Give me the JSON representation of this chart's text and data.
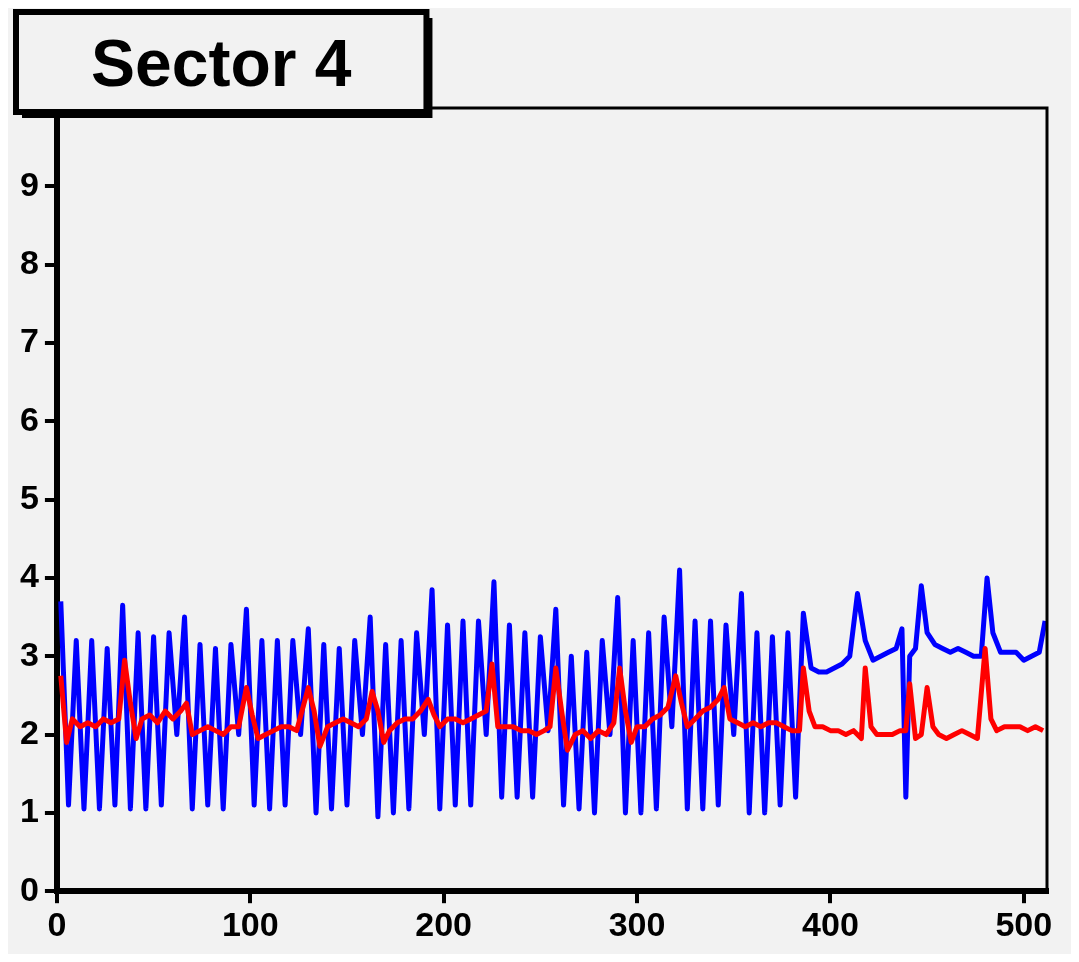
{
  "chart_data": {
    "type": "line",
    "title": "Sector 4",
    "xlim": [
      0,
      512
    ],
    "xticks": [
      0,
      100,
      200,
      300,
      400,
      500
    ],
    "ylim": [
      0,
      10
    ],
    "yticks": [
      0,
      1,
      2,
      3,
      4,
      5,
      6,
      7,
      8,
      9
    ],
    "grid": false,
    "legend": false,
    "series": [
      {
        "color": "#0000ff",
        "x": [
          2,
          6,
          10,
          14,
          18,
          22,
          26,
          30,
          34,
          38,
          42,
          46,
          50,
          54,
          58,
          62,
          66,
          70,
          74,
          78,
          82,
          86,
          90,
          94,
          98,
          102,
          106,
          110,
          114,
          118,
          122,
          126,
          130,
          134,
          138,
          142,
          146,
          150,
          154,
          158,
          162,
          166,
          170,
          174,
          178,
          182,
          186,
          190,
          194,
          198,
          202,
          206,
          210,
          214,
          218,
          222,
          226,
          230,
          234,
          238,
          242,
          246,
          250,
          254,
          258,
          262,
          266,
          270,
          274,
          278,
          282,
          286,
          290,
          294,
          298,
          302,
          306,
          310,
          314,
          318,
          322,
          326,
          330,
          334,
          338,
          342,
          346,
          350,
          354,
          358,
          362,
          366,
          370,
          374,
          378,
          382,
          386,
          390,
          394,
          398,
          402,
          406,
          410,
          414,
          418,
          422,
          426,
          430,
          434,
          437,
          439,
          441,
          444,
          447,
          450,
          454,
          458,
          462,
          466,
          470,
          474,
          478,
          481,
          484,
          488,
          492,
          496,
          500,
          504,
          508,
          511
        ],
        "values": [
          3.7,
          1.1,
          3.2,
          1.05,
          3.2,
          1.05,
          3.1,
          1.1,
          3.65,
          1.05,
          3.3,
          1.05,
          3.25,
          1.1,
          3.3,
          2.0,
          3.5,
          1.05,
          3.15,
          1.1,
          3.1,
          1.05,
          3.15,
          2.0,
          3.6,
          1.1,
          3.2,
          1.05,
          3.2,
          1.1,
          3.2,
          2.0,
          3.35,
          1.0,
          3.15,
          1.05,
          3.1,
          1.1,
          3.2,
          2.0,
          3.5,
          0.95,
          3.15,
          1.0,
          3.2,
          1.05,
          3.3,
          2.0,
          3.85,
          1.05,
          3.4,
          1.1,
          3.45,
          1.1,
          3.45,
          2.0,
          3.95,
          1.2,
          3.4,
          1.2,
          3.3,
          1.2,
          3.25,
          2.05,
          3.6,
          1.1,
          3.0,
          1.05,
          3.05,
          1.0,
          3.2,
          2.0,
          3.75,
          1.0,
          3.2,
          1.0,
          3.3,
          1.05,
          3.5,
          2.1,
          4.1,
          1.05,
          3.45,
          1.05,
          3.45,
          1.1,
          3.4,
          2.0,
          3.8,
          1.0,
          3.3,
          1.0,
          3.25,
          1.1,
          3.3,
          1.2,
          3.55,
          2.85,
          2.8,
          2.8,
          2.85,
          2.9,
          3.0,
          3.8,
          3.2,
          2.95,
          3.0,
          3.05,
          3.1,
          3.35,
          1.2,
          3.0,
          3.1,
          3.9,
          3.3,
          3.15,
          3.1,
          3.05,
          3.1,
          3.05,
          3.0,
          3.0,
          4.0,
          3.3,
          3.05,
          3.05,
          3.05,
          2.95,
          3.0,
          3.05,
          3.45
        ]
      },
      {
        "color": "#ff0000",
        "x": [
          2,
          5,
          8,
          12,
          16,
          20,
          24,
          28,
          32,
          35,
          38,
          41,
          44,
          48,
          52,
          56,
          60,
          64,
          67,
          70,
          74,
          78,
          82,
          86,
          90,
          94,
          98,
          101,
          104,
          108,
          112,
          116,
          120,
          124,
          130,
          133,
          136,
          140,
          144,
          148,
          152,
          156,
          160,
          163,
          166,
          169,
          172,
          176,
          180,
          184,
          188,
          192,
          195,
          198,
          202,
          206,
          210,
          214,
          218,
          222,
          225,
          228,
          232,
          236,
          240,
          244,
          248,
          252,
          255,
          258,
          261,
          264,
          268,
          272,
          276,
          280,
          284,
          288,
          291,
          294,
          297,
          300,
          304,
          308,
          312,
          316,
          320,
          323,
          326,
          330,
          334,
          338,
          342,
          345,
          348,
          352,
          356,
          360,
          364,
          368,
          372,
          376,
          380,
          384,
          386,
          389,
          392,
          396,
          400,
          404,
          408,
          412,
          416,
          418,
          421,
          424,
          428,
          432,
          436,
          439,
          441,
          444,
          447,
          450,
          453,
          456,
          460,
          464,
          468,
          472,
          476,
          480,
          483,
          486,
          490,
          494,
          498,
          502,
          506,
          510
        ],
        "values": [
          2.75,
          1.9,
          2.2,
          2.1,
          2.15,
          2.1,
          2.2,
          2.15,
          2.2,
          2.95,
          2.4,
          1.95,
          2.2,
          2.25,
          2.15,
          2.3,
          2.2,
          2.3,
          2.4,
          2.0,
          2.05,
          2.1,
          2.05,
          2.0,
          2.1,
          2.1,
          2.6,
          2.25,
          1.95,
          2.0,
          2.05,
          2.1,
          2.1,
          2.05,
          2.6,
          2.3,
          1.85,
          2.1,
          2.15,
          2.2,
          2.15,
          2.1,
          2.2,
          2.55,
          2.3,
          1.9,
          2.05,
          2.15,
          2.2,
          2.2,
          2.3,
          2.45,
          2.25,
          2.1,
          2.2,
          2.2,
          2.15,
          2.2,
          2.25,
          2.3,
          2.9,
          2.1,
          2.1,
          2.1,
          2.05,
          2.05,
          2.0,
          2.05,
          2.1,
          2.85,
          2.3,
          1.8,
          2.0,
          2.05,
          1.95,
          2.05,
          2.0,
          2.15,
          2.85,
          2.3,
          1.9,
          2.1,
          2.1,
          2.2,
          2.25,
          2.35,
          2.75,
          2.4,
          2.1,
          2.2,
          2.3,
          2.35,
          2.45,
          2.6,
          2.2,
          2.15,
          2.1,
          2.15,
          2.1,
          2.15,
          2.15,
          2.1,
          2.05,
          2.05,
          2.85,
          2.3,
          2.1,
          2.1,
          2.05,
          2.05,
          2.0,
          2.05,
          1.95,
          2.85,
          2.1,
          2.0,
          2.0,
          2.0,
          2.05,
          2.05,
          2.65,
          1.95,
          2.0,
          2.6,
          2.1,
          2.0,
          1.95,
          2.0,
          2.05,
          2.0,
          1.95,
          3.1,
          2.2,
          2.05,
          2.1,
          2.1,
          2.1,
          2.05,
          2.1,
          2.05
        ]
      }
    ]
  }
}
